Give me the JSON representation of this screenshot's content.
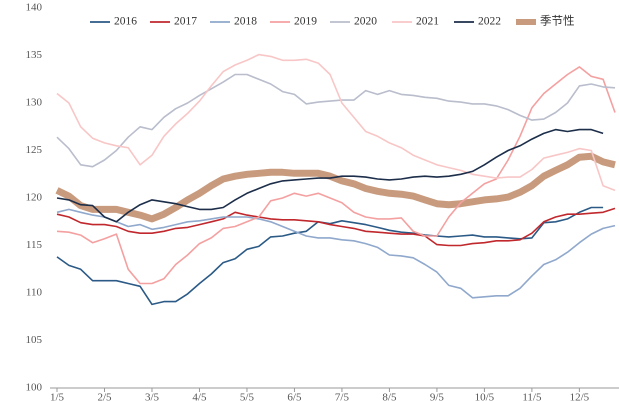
{
  "chart_data": {
    "type": "line",
    "categories": [
      "1/5",
      null,
      null,
      null,
      "2/5",
      null,
      null,
      null,
      "3/5",
      null,
      null,
      null,
      "4/5",
      null,
      null,
      null,
      "5/5",
      null,
      null,
      null,
      "6/5",
      null,
      null,
      null,
      "7/5",
      null,
      null,
      null,
      "8/5",
      null,
      null,
      null,
      "9/5",
      null,
      null,
      null,
      "10/5",
      null,
      null,
      null,
      "11/5",
      null,
      null,
      null,
      "12/5",
      null,
      null,
      null
    ],
    "ylim": [
      100,
      140
    ],
    "yticks": [
      100,
      105,
      110,
      115,
      120,
      125,
      130,
      135,
      140
    ],
    "grid": false,
    "series": [
      {
        "name": "2016",
        "color": "#2b5a86",
        "values": [
          113.8,
          112.9,
          112.5,
          111.3,
          111.3,
          111.3,
          111.0,
          110.7,
          108.8,
          109.1,
          109.1,
          109.9,
          111.0,
          112.0,
          113.2,
          113.6,
          114.6,
          114.9,
          115.9,
          116.0,
          116.3,
          116.5,
          117.5,
          117.3,
          117.6,
          117.4,
          117.2,
          116.9,
          116.6,
          116.4,
          116.3,
          116.1,
          116.0,
          115.9,
          116.0,
          116.1,
          115.9,
          115.9,
          115.8,
          115.7,
          115.8,
          117.4,
          117.5,
          117.8,
          118.5,
          119.0,
          119.0,
          null
        ]
      },
      {
        "name": "2017",
        "color": "#c0282d",
        "values": [
          118.3,
          118.0,
          117.4,
          117.2,
          117.2,
          117.0,
          116.5,
          116.3,
          116.3,
          116.5,
          116.8,
          116.9,
          117.2,
          117.5,
          117.8,
          118.5,
          118.2,
          118.0,
          117.8,
          117.7,
          117.7,
          117.6,
          117.5,
          117.2,
          117.0,
          116.8,
          116.5,
          116.4,
          116.3,
          116.2,
          116.2,
          116.0,
          115.1,
          115.0,
          115.0,
          115.2,
          115.3,
          115.5,
          115.5,
          115.6,
          116.3,
          117.5,
          118.0,
          118.3,
          118.3,
          118.4,
          118.5,
          118.9
        ]
      },
      {
        "name": "2018",
        "color": "#8fa8cc",
        "values": [
          118.5,
          118.8,
          118.5,
          118.2,
          118.0,
          117.5,
          117.0,
          117.2,
          116.7,
          116.9,
          117.2,
          117.5,
          117.6,
          117.8,
          118.0,
          118.0,
          118.0,
          117.8,
          117.5,
          117.0,
          116.5,
          116.0,
          115.8,
          115.8,
          115.6,
          115.5,
          115.2,
          114.8,
          114.0,
          113.9,
          113.7,
          113.0,
          112.2,
          110.8,
          110.5,
          109.5,
          109.6,
          109.7,
          109.7,
          110.5,
          111.8,
          113.0,
          113.5,
          114.3,
          115.3,
          116.2,
          116.8,
          117.1
        ]
      },
      {
        "name": "2019",
        "color": "#f4a0a0",
        "values": [
          116.5,
          116.4,
          116.1,
          115.3,
          115.7,
          116.2,
          112.5,
          111.0,
          111.0,
          111.5,
          113.0,
          114.0,
          115.2,
          115.8,
          116.8,
          117.0,
          117.5,
          118.0,
          119.7,
          120.0,
          120.5,
          120.2,
          120.5,
          120.0,
          119.5,
          118.5,
          118.0,
          117.8,
          117.8,
          117.9,
          116.5,
          116.0,
          116.0,
          118.0,
          119.5,
          120.5,
          121.5,
          122.0,
          124.0,
          126.5,
          129.5,
          131.0,
          132.0,
          133.0,
          133.8,
          132.8,
          132.5,
          129.0
        ]
      },
      {
        "name": "2020",
        "color": "#b9bdcc",
        "values": [
          126.4,
          125.2,
          123.5,
          123.3,
          124.0,
          125.0,
          126.4,
          127.5,
          127.2,
          128.5,
          129.4,
          130.0,
          130.8,
          131.5,
          132.2,
          133.0,
          133.0,
          132.5,
          132.0,
          131.2,
          130.9,
          129.9,
          130.1,
          130.2,
          130.3,
          130.3,
          131.3,
          130.9,
          131.3,
          130.9,
          130.8,
          130.6,
          130.5,
          130.2,
          130.1,
          129.9,
          129.9,
          129.7,
          129.3,
          128.7,
          128.2,
          128.3,
          129.0,
          130.0,
          131.8,
          132.0,
          131.7,
          131.6
        ]
      },
      {
        "name": "2021",
        "color": "#f8c6c6",
        "values": [
          131.0,
          130.0,
          127.5,
          126.3,
          125.8,
          125.5,
          125.3,
          123.5,
          124.5,
          126.5,
          127.8,
          128.9,
          130.2,
          131.8,
          133.3,
          134.0,
          134.5,
          135.1,
          134.9,
          134.5,
          134.5,
          134.6,
          134.2,
          133.0,
          130.0,
          128.5,
          127.0,
          126.5,
          125.8,
          125.3,
          124.5,
          124.0,
          123.5,
          123.2,
          122.9,
          122.5,
          122.3,
          122.1,
          122.2,
          122.2,
          123.0,
          124.2,
          124.5,
          124.8,
          125.2,
          125.0,
          121.3,
          120.8
        ]
      },
      {
        "name": "2022",
        "color": "#1c2e4a",
        "values": [
          120.0,
          119.8,
          119.3,
          119.2,
          118.0,
          117.5,
          118.5,
          119.3,
          119.8,
          119.6,
          119.4,
          119.1,
          118.8,
          118.8,
          119.0,
          119.8,
          120.5,
          121.0,
          121.5,
          121.8,
          121.9,
          122.0,
          122.1,
          122.1,
          122.3,
          122.3,
          122.2,
          122.0,
          121.9,
          122.0,
          122.2,
          122.3,
          122.2,
          122.3,
          122.5,
          122.8,
          123.5,
          124.3,
          125.0,
          125.5,
          126.2,
          126.8,
          127.2,
          127.0,
          127.2,
          127.2,
          126.8,
          null
        ]
      },
      {
        "name": "季节性",
        "color": "#c99b7e",
        "values": [
          120.8,
          120.2,
          119.2,
          118.8,
          118.8,
          118.8,
          118.5,
          118.2,
          117.8,
          118.3,
          119.0,
          119.8,
          120.5,
          121.3,
          122.0,
          122.3,
          122.5,
          122.6,
          122.7,
          122.7,
          122.6,
          122.6,
          122.6,
          122.3,
          121.8,
          121.5,
          121.0,
          120.7,
          120.5,
          120.4,
          120.2,
          119.8,
          119.4,
          119.3,
          119.4,
          119.6,
          119.8,
          119.9,
          120.1,
          120.6,
          121.3,
          122.3,
          122.9,
          123.5,
          124.3,
          124.4,
          123.8,
          123.5
        ]
      }
    ]
  }
}
